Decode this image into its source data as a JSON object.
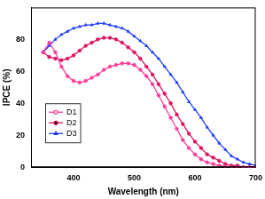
{
  "chart_data": {
    "type": "line",
    "x_label": "Wavelength (nm)",
    "y_label": "IPCE (%)",
    "x": [
      350,
      360,
      370,
      380,
      390,
      400,
      410,
      420,
      430,
      440,
      450,
      460,
      470,
      480,
      490,
      500,
      510,
      520,
      530,
      540,
      550,
      560,
      570,
      580,
      590,
      600,
      610,
      620,
      630,
      640,
      650,
      660,
      670,
      680,
      690,
      700
    ],
    "series": [
      {
        "name": "D1",
        "color": "#ff3d9a",
        "marker": "circle",
        "line_style": "solid",
        "values": [
          72,
          78,
          72,
          63,
          57,
          54,
          53,
          54,
          56,
          58,
          61,
          63,
          64,
          65,
          65,
          64,
          61,
          57,
          52,
          45,
          38,
          31,
          24,
          17,
          12,
          8,
          5,
          3,
          2,
          1,
          0.5,
          0,
          0,
          0,
          0,
          0
        ]
      },
      {
        "name": "D2",
        "color": "#e0115f",
        "marker": "circle",
        "line_style": "solid",
        "values": [
          72,
          69,
          68,
          67,
          68,
          70,
          73,
          76,
          78,
          80,
          81,
          81,
          80,
          78,
          75,
          72,
          68,
          63,
          58,
          52,
          46,
          40,
          33,
          27,
          21,
          16,
          12,
          8,
          6,
          4,
          2,
          1,
          1,
          0,
          0,
          0
        ]
      },
      {
        "name": "D3",
        "color": "#1f3fff",
        "marker": "triangle",
        "line_style": "solid",
        "values": [
          72,
          76,
          80,
          83,
          85,
          87,
          88,
          89,
          89,
          90,
          90,
          89,
          88,
          87,
          85,
          82,
          79,
          76,
          72,
          68,
          63,
          58,
          53,
          47,
          41,
          36,
          31,
          25,
          20,
          15,
          11,
          7,
          5,
          3,
          2,
          1
        ]
      }
    ],
    "xlim": [
      330,
      700
    ],
    "xticks": [
      400,
      500,
      600,
      700
    ],
    "ylim": [
      0,
      100
    ],
    "yticks": [
      0,
      20,
      40,
      60,
      80
    ],
    "grid": false,
    "legend": "left"
  }
}
